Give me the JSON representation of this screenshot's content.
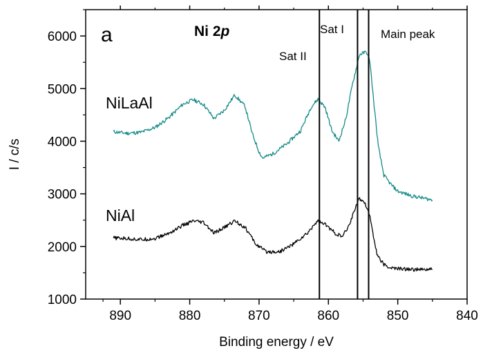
{
  "chart_data": {
    "type": "line",
    "title": "Ni 2",
    "title_italic_part": "p",
    "panel_label": "a",
    "xlabel": "Binding energy / eV",
    "ylabel": "I / c/s",
    "xlim": [
      895,
      840
    ],
    "ylim": [
      1000,
      6500
    ],
    "x_reversed": true,
    "grid": false,
    "x_ticks": [
      890,
      880,
      870,
      860,
      850,
      840
    ],
    "y_ticks": [
      1000,
      2000,
      3000,
      4000,
      5000,
      6000
    ],
    "x_tick_labels": [
      "890",
      "880",
      "870",
      "860",
      "850",
      "840"
    ],
    "y_tick_labels": [
      "1000",
      "2000",
      "3000",
      "4000",
      "5000",
      "6000"
    ],
    "vertical_lines": [
      {
        "x": 861.3,
        "label": "Sat II"
      },
      {
        "x": 855.8,
        "label": "Sat I"
      },
      {
        "x": 854.2,
        "label": "Main peak"
      }
    ],
    "series": [
      {
        "name": "NiLaAl",
        "color": "#138a87",
        "x": [
          891,
          889,
          887,
          885,
          883,
          881,
          879.5,
          878,
          876.5,
          875,
          873.5,
          872,
          871,
          870,
          869.5,
          868,
          866,
          864,
          862.5,
          861.5,
          860.5,
          859.5,
          858.5,
          857.5,
          856.5,
          855.5,
          854.5,
          854,
          853.5,
          852.8,
          852,
          851,
          850,
          848,
          846,
          845
        ],
        "y": [
          4180,
          4150,
          4170,
          4260,
          4450,
          4700,
          4790,
          4700,
          4430,
          4590,
          4880,
          4660,
          4150,
          3800,
          3680,
          3760,
          3950,
          4200,
          4650,
          4800,
          4650,
          4200,
          4000,
          4420,
          5100,
          5650,
          5700,
          5500,
          4800,
          3900,
          3350,
          3180,
          3050,
          2960,
          2910,
          2880
        ]
      },
      {
        "name": "NiAl",
        "color": "#000000",
        "x": [
          891,
          889,
          887,
          885,
          883,
          881,
          879.5,
          878,
          876.5,
          875,
          873.5,
          872,
          870.5,
          869,
          867,
          865,
          863,
          862,
          861.5,
          860.5,
          859,
          858,
          857,
          856,
          855.5,
          855,
          854.5,
          854,
          853.5,
          853,
          852,
          851,
          849,
          847,
          845
        ],
        "y": [
          2160,
          2150,
          2130,
          2150,
          2250,
          2400,
          2480,
          2450,
          2250,
          2360,
          2490,
          2360,
          2050,
          1900,
          1900,
          2050,
          2250,
          2430,
          2480,
          2420,
          2250,
          2180,
          2400,
          2790,
          2900,
          2880,
          2760,
          2560,
          2200,
          1850,
          1650,
          1590,
          1570,
          1560,
          1560
        ]
      }
    ]
  }
}
